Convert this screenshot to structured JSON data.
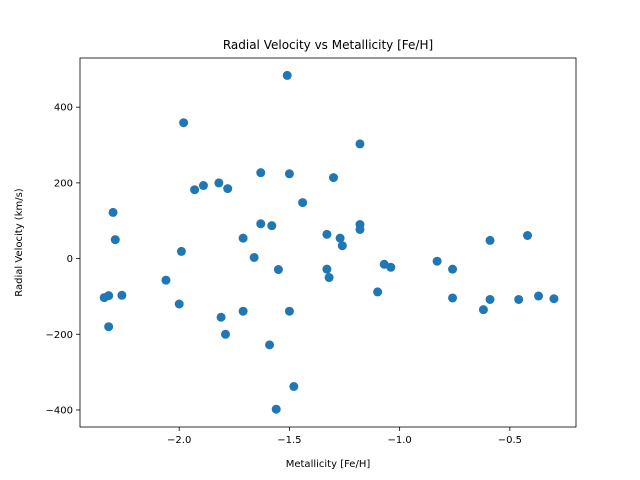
{
  "chart_data": {
    "type": "scatter",
    "title": "Radial Velocity vs Metallicity [Fe/H]",
    "xlabel": "Metallicity [Fe/H]",
    "ylabel": "Radial Velocity (km/s)",
    "xlim": [
      -2.45,
      -0.2
    ],
    "ylim": [
      -445,
      530
    ],
    "xticks": [
      -2.0,
      -1.5,
      -1.0,
      -0.5
    ],
    "xtick_labels": [
      "−2.0",
      "−1.5",
      "−1.0",
      "−0.5"
    ],
    "yticks": [
      -400,
      -200,
      0,
      200,
      400
    ],
    "ytick_labels": [
      "−400",
      "−200",
      "0",
      "200",
      "400"
    ],
    "grid": false,
    "marker_color": "#1f77b4",
    "x": [
      -2.34,
      -2.32,
      -2.32,
      -2.3,
      -2.29,
      -2.26,
      -2.06,
      -2.0,
      -1.99,
      -1.98,
      -1.93,
      -1.89,
      -1.82,
      -1.81,
      -1.79,
      -1.78,
      -1.71,
      -1.71,
      -1.66,
      -1.63,
      -1.63,
      -1.59,
      -1.58,
      -1.56,
      -1.55,
      -1.51,
      -1.5,
      -1.5,
      -1.48,
      -1.44,
      -1.33,
      -1.33,
      -1.32,
      -1.3,
      -1.27,
      -1.26,
      -1.18,
      -1.18,
      -1.18,
      -1.1,
      -1.07,
      -1.04,
      -0.83,
      -0.76,
      -0.76,
      -0.62,
      -0.59,
      -0.59,
      -0.46,
      -0.42,
      -0.37,
      -0.3
    ],
    "y": [
      -103,
      -98,
      -180,
      122,
      50,
      -97,
      -57,
      -120,
      19,
      359,
      182,
      193,
      200,
      -155,
      -200,
      185,
      54,
      -139,
      3,
      92,
      227,
      -228,
      87,
      -398,
      -29,
      484,
      224,
      -139,
      -338,
      148,
      64,
      -28,
      -50,
      214,
      54,
      34,
      303,
      90,
      77,
      -88,
      -15,
      -23,
      -7,
      -104,
      -28,
      -135,
      -108,
      48,
      -108,
      61,
      -99,
      -106
    ]
  }
}
